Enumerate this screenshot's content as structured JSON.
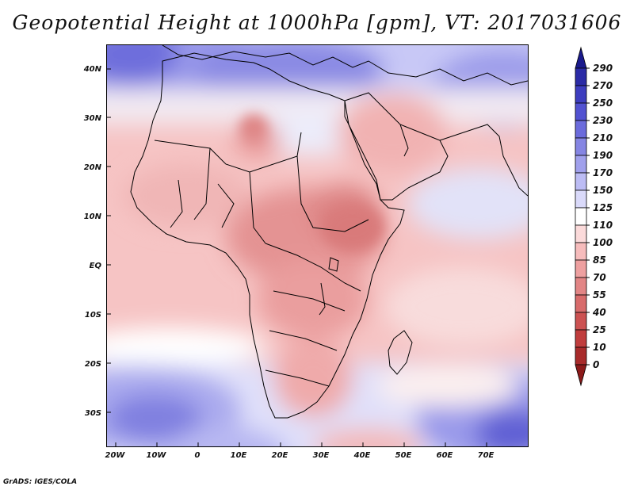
{
  "title": "Geopotential Height at 1000hPa [gpm], VT: 2017031606",
  "credit": "GrADS: IGES/COLA",
  "chart_data": {
    "type": "heatmap",
    "variable": "Geopotential Height",
    "level": "1000hPa",
    "units": "gpm",
    "valid_time": "2017031606",
    "lon_range": [
      -25,
      80
    ],
    "lat_range": [
      -37,
      45
    ],
    "lon_ticks": [
      "20W",
      "10W",
      "0",
      "10E",
      "20E",
      "30E",
      "40E",
      "50E",
      "60E",
      "70E"
    ],
    "lat_ticks": [
      "40N",
      "30N",
      "20N",
      "10N",
      "EQ",
      "10S",
      "20S",
      "30S"
    ],
    "colorbar": {
      "levels": [
        290,
        270,
        250,
        230,
        210,
        190,
        170,
        150,
        125,
        110,
        100,
        85,
        70,
        55,
        40,
        25,
        10,
        0
      ],
      "colors": [
        "#1a1a8c",
        "#2b2ba6",
        "#3d3dbf",
        "#5252d1",
        "#6b6bdc",
        "#8585e3",
        "#a0a0ec",
        "#bcbcf4",
        "#dadafa",
        "#ffffff",
        "#fbdada",
        "#f6bcbc",
        "#eea0a0",
        "#e28585",
        "#d86b6b",
        "#cc5252",
        "#c03d3d",
        "#a82b2b",
        "#8c1a1a"
      ]
    }
  }
}
